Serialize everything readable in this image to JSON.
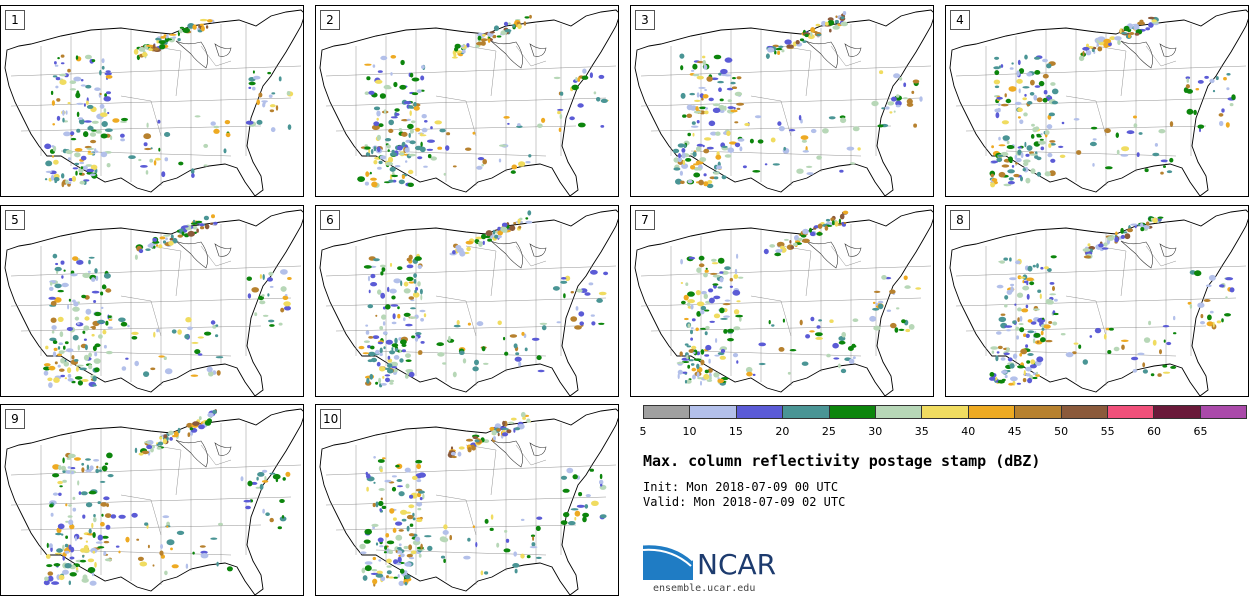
{
  "panels": [
    {
      "label": "1"
    },
    {
      "label": "2"
    },
    {
      "label": "3"
    },
    {
      "label": "4"
    },
    {
      "label": "5"
    },
    {
      "label": "6"
    },
    {
      "label": "7"
    },
    {
      "label": "8"
    },
    {
      "label": "9"
    },
    {
      "label": "10"
    }
  ],
  "colorbar": {
    "colors": [
      "#a0a0a0",
      "#b3c0ea",
      "#5b5bd6",
      "#4a9595",
      "#0c850c",
      "#b7d7b7",
      "#f0dc60",
      "#eeaa22",
      "#b7812e",
      "#8b5a3b",
      "#f0507a",
      "#6a1a3a",
      "#aa4aaa"
    ],
    "ticks": [
      "5",
      "10",
      "15",
      "20",
      "25",
      "30",
      "35",
      "40",
      "45",
      "50",
      "55",
      "60",
      "65"
    ]
  },
  "title": "Max. column reflectivity postage stamp (dBZ)",
  "init_label": "Init:",
  "init_value": "Mon 2018-07-09 00 UTC",
  "valid_label": "Valid:",
  "valid_value": "Mon 2018-07-09 02 UTC",
  "logo": {
    "text": "NCAR",
    "url": "ensemble.ucar.edu",
    "color_dark": "#1d3b6e",
    "color_light": "#2a7bc8"
  }
}
